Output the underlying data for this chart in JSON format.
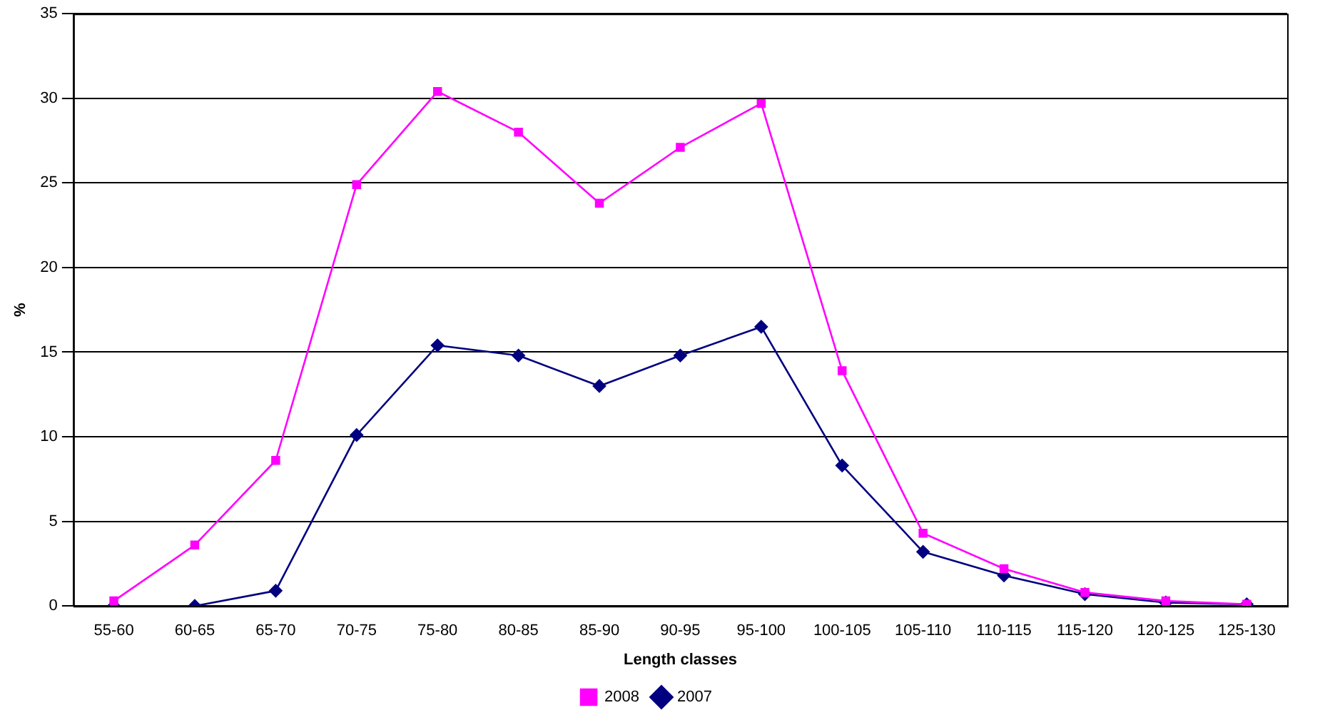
{
  "chart_data": {
    "type": "line",
    "xlabel": "Length classes",
    "ylabel": "%",
    "categories": [
      "55-60",
      "60-65",
      "65-70",
      "70-75",
      "75-80",
      "80-85",
      "85-90",
      "90-95",
      "95-100",
      "100-105",
      "105-110",
      "110-115",
      "115-120",
      "120-125",
      "125-130"
    ],
    "series": [
      {
        "name": "2007",
        "color": "#000080",
        "marker": "diamond",
        "values": [
          0,
          0,
          0.9,
          10.1,
          15.4,
          14.8,
          13.0,
          14.8,
          16.5,
          8.3,
          3.2,
          1.8,
          0.7,
          0.2,
          0.1
        ]
      },
      {
        "name": "2008",
        "color": "#ff00ff",
        "marker": "square",
        "values": [
          0.3,
          3.6,
          8.6,
          24.9,
          30.4,
          28.0,
          23.8,
          27.1,
          29.7,
          13.9,
          4.3,
          2.2,
          0.8,
          0.3,
          0.1
        ]
      }
    ],
    "ylim": [
      0,
      35
    ],
    "yticks": [
      0,
      5,
      10,
      15,
      20,
      25,
      30,
      35
    ],
    "grid": "y",
    "legend": "bottom",
    "line_style": "solid"
  }
}
